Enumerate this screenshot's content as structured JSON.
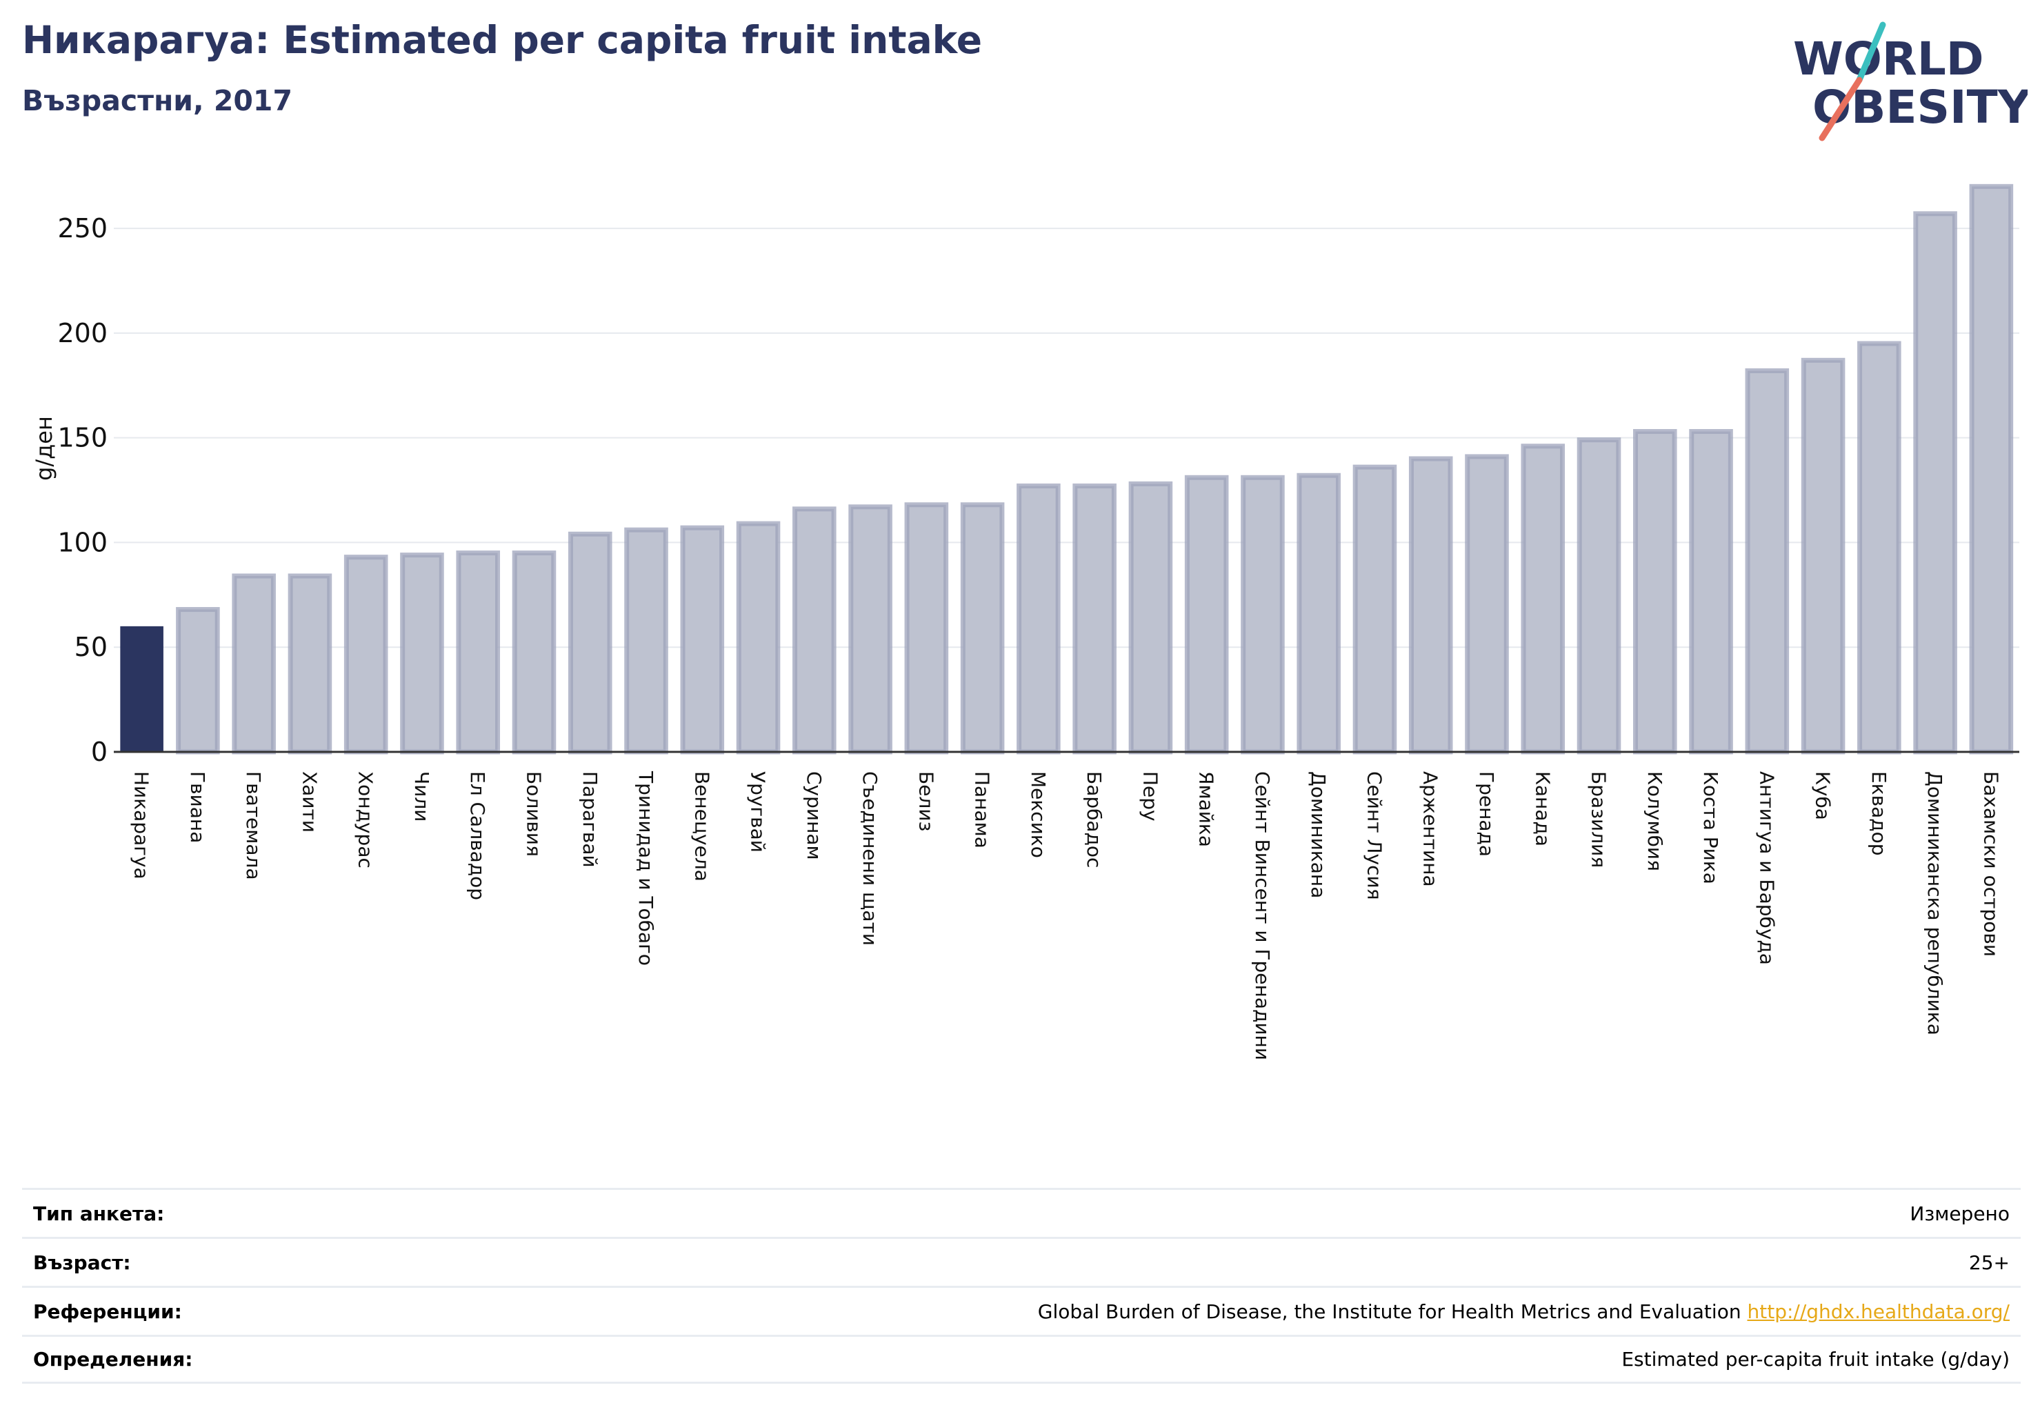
{
  "title": "Никарагуа: Estimated per capita fruit intake",
  "subtitle": "Възрастни, 2017",
  "logo": {
    "line1": "WORLD",
    "line2": "OBESITY"
  },
  "colors": {
    "highlight": "#2b3560",
    "bar_fill": "#bec2d0",
    "bar_stroke": "#9ea3bb",
    "brand": "#2b3560",
    "accent_teal": "#3bbfbf",
    "accent_coral": "#e8705d",
    "link": "#e6a817"
  },
  "chart_data": {
    "type": "bar",
    "ylabel": "g/ден",
    "ylim": [
      0,
      280
    ],
    "yticks": [
      0,
      50,
      100,
      150,
      200,
      250
    ],
    "grid": true,
    "highlight": "Никарагуа",
    "categories": [
      "Никарагуа",
      "Гвиана",
      "Гватемала",
      "Хаити",
      "Хондурас",
      "Чили",
      "Ел Салвадор",
      "Боливия",
      "Парагвай",
      "Тринидад и Тобаго",
      "Венецуела",
      "Уругвай",
      "Суринам",
      "Съединени щати",
      "Белиз",
      "Панама",
      "Мексико",
      "Барбадос",
      "Перу",
      "Ямайка",
      "Сейнт Винсент и Гренадини",
      "Доминикана",
      "Сейнт Лусия",
      "Аржентина",
      "Гренада",
      "Канада",
      "Бразилия",
      "Колумбия",
      "Коста Рика",
      "Антигуа и Барбуда",
      "Куба",
      "Еквадор",
      "Доминиканска република",
      "Бахамски острови"
    ],
    "values": [
      60,
      69,
      85,
      85,
      94,
      95,
      96,
      96,
      105,
      107,
      108,
      110,
      117,
      118,
      119,
      119,
      128,
      128,
      129,
      132,
      132,
      133,
      137,
      141,
      142,
      147,
      150,
      154,
      154,
      183,
      188,
      196,
      258,
      271
    ]
  },
  "info": [
    {
      "label": "Тип анкета:",
      "value": "Измерено"
    },
    {
      "label": "Възраст:",
      "value": "25+"
    },
    {
      "label": "Референции:",
      "value": "Global Burden of Disease, the Institute for Health Metrics and Evaluation",
      "link": "http://ghdx.healthdata.org/"
    },
    {
      "label": "Определения:",
      "value": "Estimated per-capita fruit intake (g/day)"
    }
  ]
}
